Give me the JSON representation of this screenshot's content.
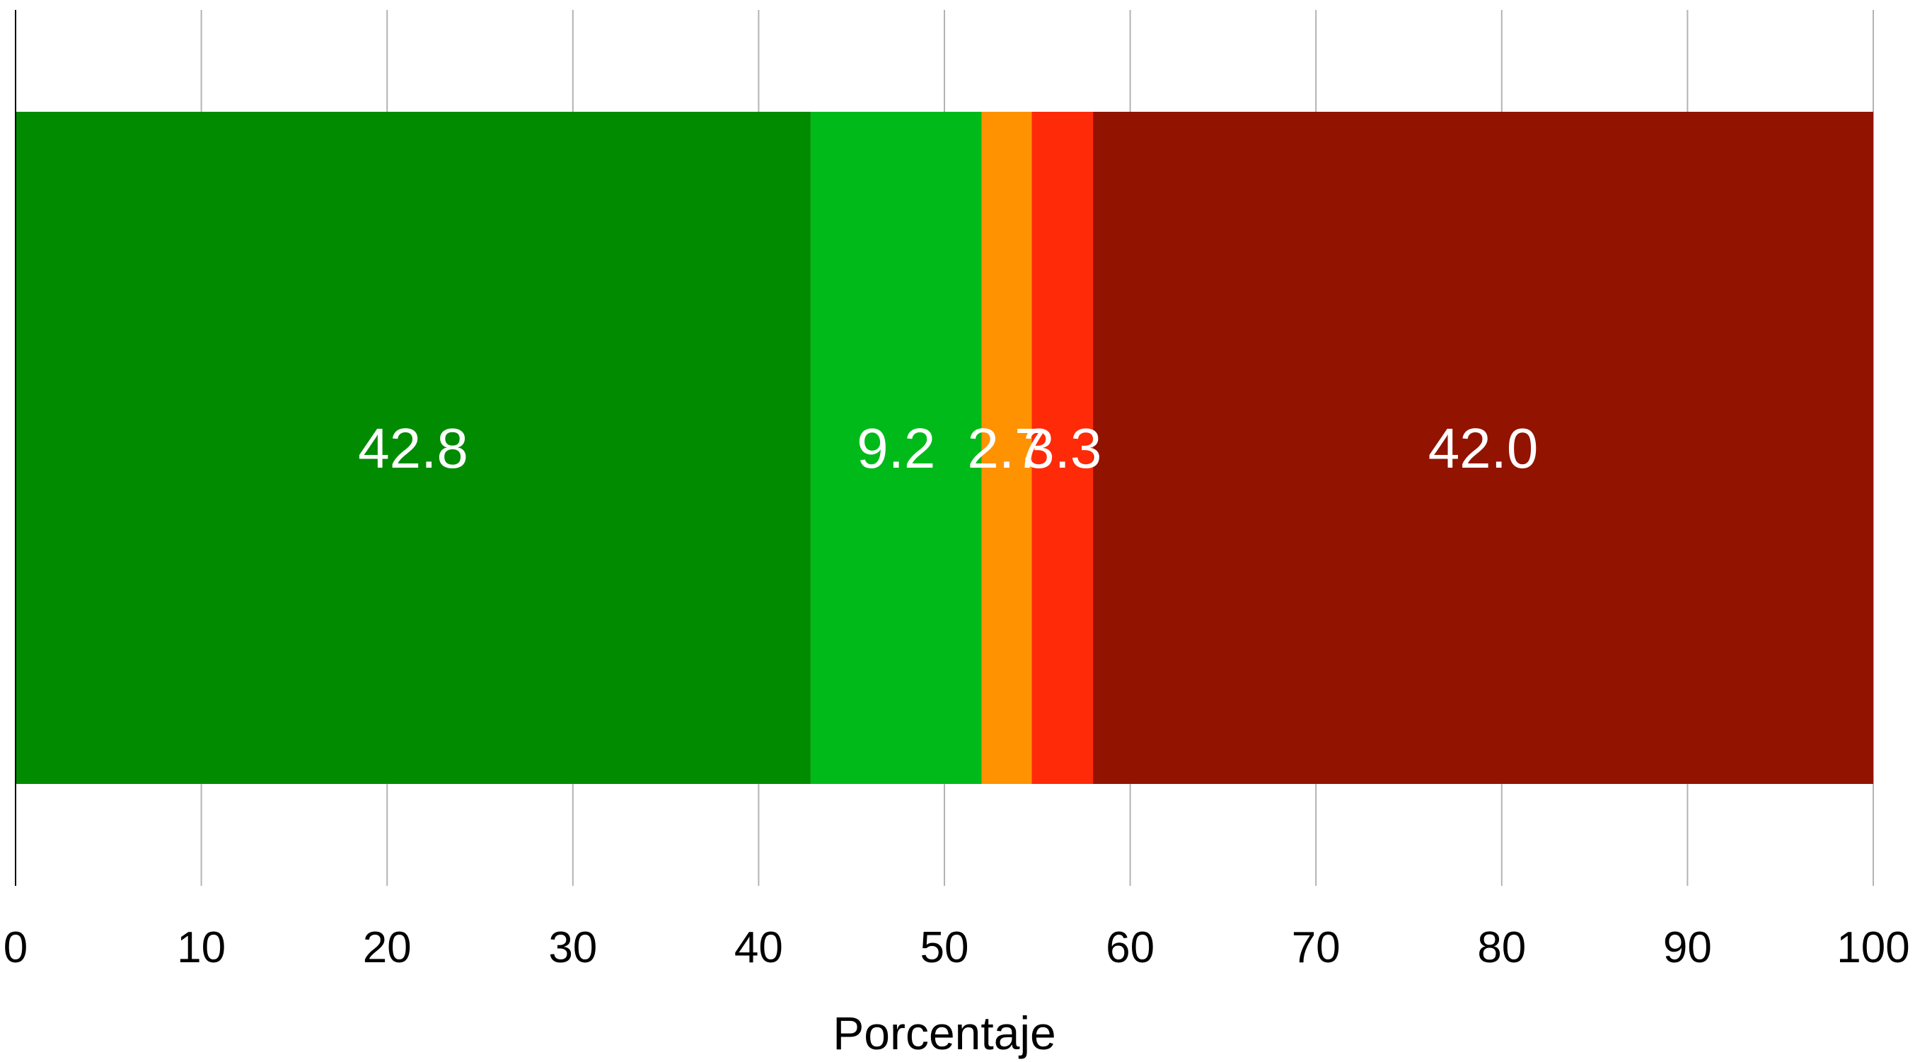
{
  "chart_data": {
    "type": "bar",
    "orientation": "horizontal",
    "stacked": true,
    "categories": [
      ""
    ],
    "series": [
      {
        "values": [
          42.8
        ],
        "color": "#008b00",
        "label": "42.8"
      },
      {
        "values": [
          9.2
        ],
        "color": "#00ba1a",
        "label": "9.2"
      },
      {
        "values": [
          2.7
        ],
        "color": "#ff9200",
        "label": "2.7"
      },
      {
        "values": [
          3.3
        ],
        "color": "#ff2a08",
        "label": "3.3"
      },
      {
        "values": [
          42.0
        ],
        "color": "#921300",
        "label": "42.0"
      }
    ],
    "xlabel": "Porcentaje",
    "ylabel": "",
    "xlim": [
      0,
      100
    ],
    "xticks": [
      "0",
      "10",
      "20",
      "30",
      "40",
      "50",
      "60",
      "70",
      "80",
      "90",
      "100"
    ],
    "grid": true
  }
}
